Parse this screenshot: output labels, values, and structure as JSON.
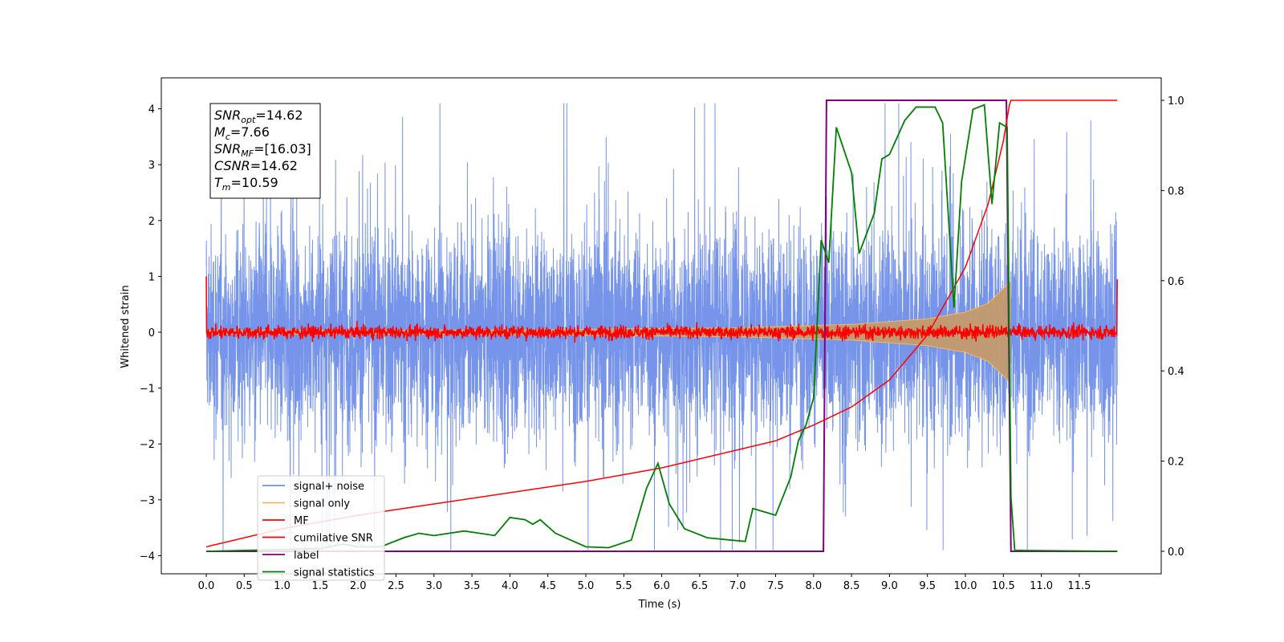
{
  "chart_data": {
    "type": "line",
    "xlabel": "Time (s)",
    "ylabel": "Whitened strain",
    "xlim": [
      -0.6,
      12.6
    ],
    "ylim": [
      -4.35,
      4.55
    ],
    "y2lim": [
      -0.05,
      1.04
    ],
    "xticks": [
      "0.0",
      "0.5",
      "1.0",
      "1.5",
      "2.0",
      "2.5",
      "3.0",
      "3.5",
      "4.0",
      "4.5",
      "5.0",
      "5.5",
      "6.0",
      "6.5",
      "7.0",
      "7.5",
      "8.0",
      "8.5",
      "9.0",
      "9.5",
      "10.0",
      "10.5",
      "11.0",
      "11.5"
    ],
    "yticks": [
      "4",
      "3",
      "2",
      "1",
      "0",
      "−1",
      "−2",
      "−3",
      "−4"
    ],
    "y2ticks": [
      "1.0",
      "0.8",
      "0.6",
      "0.4",
      "0.2",
      "0.0"
    ],
    "annotation": [
      {
        "base": "SNR",
        "sub": "opt",
        "value": "=14.62"
      },
      {
        "base": "M",
        "sub": "c",
        "value": "=7.66"
      },
      {
        "base": "SNR",
        "sub": "MF",
        "value": "=[16.03]"
      },
      {
        "base": "CSNR",
        "sub": "",
        "value": "=14.62"
      },
      {
        "base": "T",
        "sub": "m",
        "value": "=10.59"
      }
    ],
    "legend_position": "lower-left",
    "series": [
      {
        "name": "signal+ noise",
        "color": "#6f8ee8",
        "axis": "left",
        "description_range": [
          -3.9,
          4.1
        ],
        "x_range": [
          0.0,
          12.0
        ]
      },
      {
        "name": "signal only",
        "color": "#f4b860",
        "axis": "left",
        "envelope": {
          "x": [
            0.0,
            4.0,
            7.0,
            8.5,
            9.5,
            10.0,
            10.3,
            10.59
          ],
          "amp": [
            0.03,
            0.04,
            0.08,
            0.14,
            0.24,
            0.36,
            0.52,
            0.9
          ]
        }
      },
      {
        "name": "MF",
        "color": "#ff0000",
        "axis": "left",
        "level": 0.0,
        "noise": 0.06,
        "x_range": [
          0.0,
          12.0
        ]
      },
      {
        "name": "cumilative SNR",
        "color": "#ff0000",
        "axis": "right",
        "x": [
          0.0,
          1.0,
          2.0,
          3.0,
          4.0,
          5.0,
          6.0,
          7.0,
          7.5,
          8.0,
          8.5,
          9.0,
          9.5,
          10.0,
          10.3,
          10.5,
          10.59,
          10.6,
          12.0
        ],
        "values": [
          0.01,
          0.05,
          0.08,
          0.105,
          0.13,
          0.155,
          0.185,
          0.225,
          0.245,
          0.28,
          0.32,
          0.38,
          0.48,
          0.63,
          0.77,
          0.91,
          1.0,
          1.0,
          1.0
        ]
      },
      {
        "name": "label",
        "color": "#800080",
        "axis": "right",
        "x": [
          0.0,
          8.13,
          8.17,
          10.54,
          10.6,
          12.0
        ],
        "values": [
          0.0,
          0.0,
          1.0,
          1.0,
          0.0,
          0.0
        ]
      },
      {
        "name": "signal statistics",
        "color": "#008000",
        "axis": "right",
        "x": [
          0.0,
          0.5,
          1.0,
          1.5,
          1.8,
          2.0,
          2.3,
          2.6,
          2.8,
          3.0,
          3.2,
          3.4,
          3.6,
          3.8,
          4.0,
          4.2,
          4.3,
          4.4,
          4.6,
          4.8,
          5.0,
          5.3,
          5.6,
          5.8,
          5.95,
          6.1,
          6.3,
          6.6,
          6.9,
          7.1,
          7.2,
          7.5,
          7.7,
          7.8,
          7.9,
          8.0,
          8.1,
          8.2,
          8.3,
          8.5,
          8.6,
          8.8,
          8.9,
          9.0,
          9.2,
          9.35,
          9.6,
          9.7,
          9.85,
          9.95,
          10.1,
          10.25,
          10.35,
          10.45,
          10.55,
          10.6,
          10.65,
          12.0
        ],
        "values": [
          0.0,
          0.002,
          0.004,
          0.006,
          0.016,
          0.01,
          0.01,
          0.03,
          0.04,
          0.035,
          0.04,
          0.045,
          0.04,
          0.035,
          0.075,
          0.07,
          0.06,
          0.07,
          0.04,
          0.025,
          0.01,
          0.008,
          0.025,
          0.14,
          0.195,
          0.105,
          0.05,
          0.03,
          0.025,
          0.022,
          0.095,
          0.08,
          0.165,
          0.245,
          0.28,
          0.34,
          0.69,
          0.64,
          0.94,
          0.84,
          0.66,
          0.75,
          0.87,
          0.88,
          0.955,
          0.985,
          0.985,
          0.95,
          0.54,
          0.82,
          0.98,
          0.99,
          0.77,
          0.95,
          0.94,
          0.12,
          0.002,
          0.0
        ]
      }
    ]
  }
}
